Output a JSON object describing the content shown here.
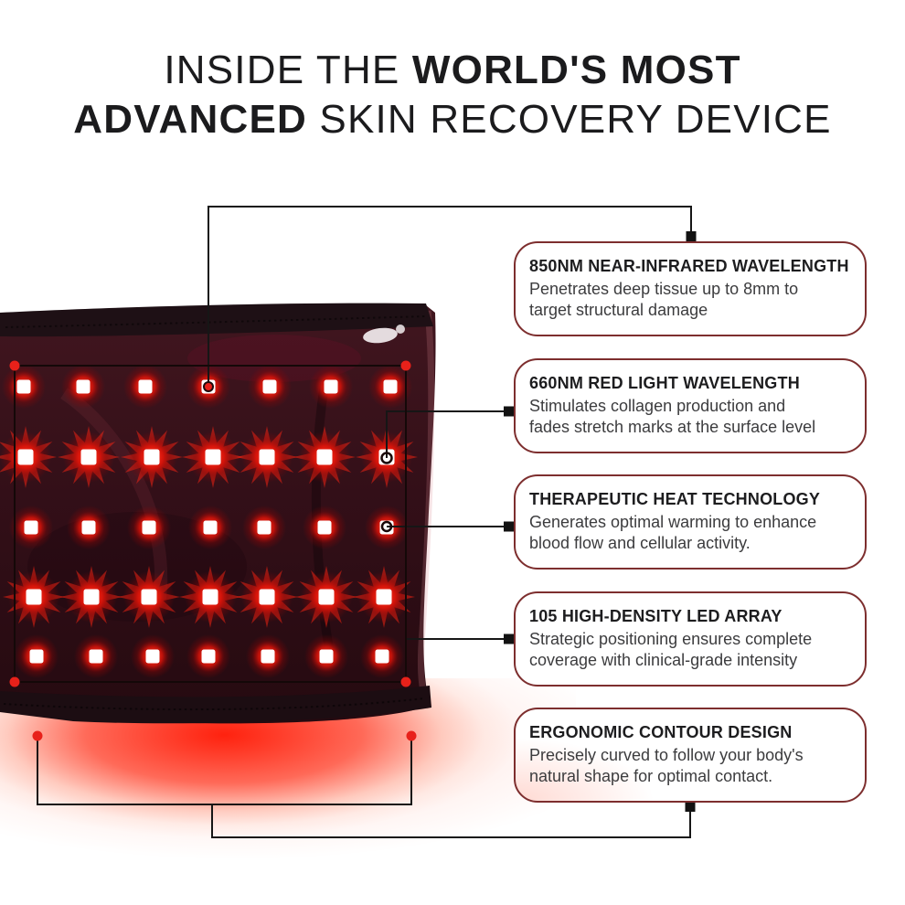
{
  "title": {
    "line1_regular": "INSIDE THE ",
    "line1_bold": "WORLD'S MOST",
    "line2_bold": "ADVANCED",
    "line2_regular": " SKIN RECOVERY DEVICE"
  },
  "callouts": [
    {
      "heading": "850NM NEAR-INFRARED WAVELENGTH",
      "body_lines": [
        "Penetrates deep tissue up to 8mm to",
        "target structural damage"
      ]
    },
    {
      "heading": "660NM RED LIGHT WAVELENGTH",
      "body_lines": [
        "Stimulates collagen production and",
        "fades stretch marks at the surface level"
      ]
    },
    {
      "heading": "THERAPEUTIC HEAT TECHNOLOGY",
      "body_lines": [
        "Generates optimal warming to enhance",
        "blood flow and cellular activity."
      ]
    },
    {
      "heading": "105 HIGH-DENSITY LED ARRAY",
      "body_lines": [
        "Strategic positioning ensures complete",
        "coverage with clinical-grade intensity"
      ]
    },
    {
      "heading": "ERGONOMIC CONTOUR DESIGN",
      "body_lines": [
        "Precisely curved to follow your body's",
        "natural shape for optimal contact."
      ]
    }
  ],
  "device": {
    "led_rows_visible": 5,
    "led_columns_visible": 7
  },
  "colors": {
    "background": "#ffffff",
    "title_text": "#1b1b1d",
    "callout_border": "#7d2e2e",
    "heading_text": "#1d1d1f",
    "body_text": "#3c3c3e",
    "leader_line": "#161616",
    "marker_red": "#e8211a",
    "led_core": "#ffffff",
    "led_glow": "#ff2315",
    "belt_dark": "#2a0e14"
  }
}
